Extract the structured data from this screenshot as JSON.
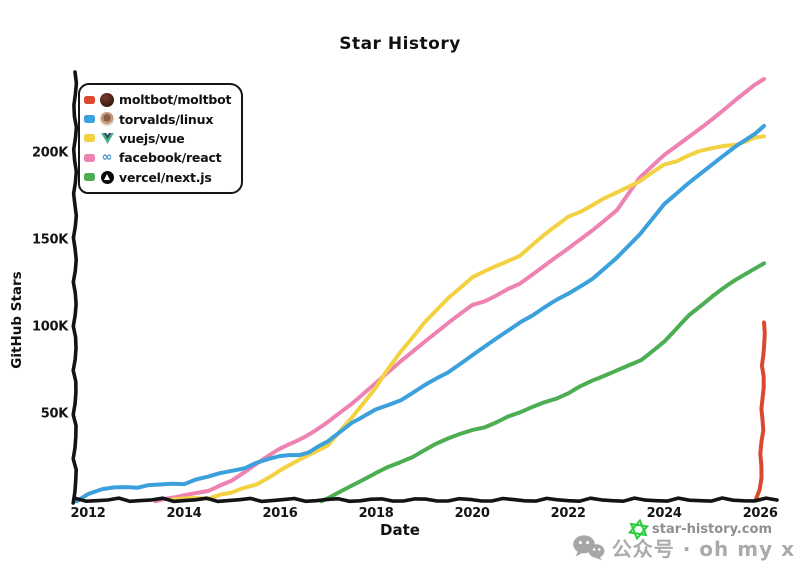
{
  "title": "Star History",
  "axes": {
    "x_label": "Date",
    "y_label": "GitHub Stars",
    "x_ticks": [
      "2012",
      "2014",
      "2016",
      "2018",
      "2020",
      "2022",
      "2024",
      "2026"
    ],
    "y_ticks": [
      "50K",
      "100K",
      "150K",
      "200K"
    ]
  },
  "chart_data": {
    "type": "line",
    "title": "Star History",
    "xlabel": "Date",
    "ylabel": "GitHub Stars",
    "x_unit": "year",
    "y_unit": "stars_in_thousands",
    "xlim": [
      2011.73,
      2026.35
    ],
    "ylim_k": [
      0,
      246
    ],
    "grid": false,
    "legend_position": "top-left",
    "series": [
      {
        "name": "moltbot/moltbot",
        "color": "#da492f",
        "points": [
          [
            2025.92,
            0
          ],
          [
            2026.0,
            6
          ],
          [
            2026.04,
            40
          ],
          [
            2026.08,
            102
          ]
        ]
      },
      {
        "name": "torvalds/linux",
        "color": "#3ba0dc",
        "points": [
          [
            2011.75,
            0
          ],
          [
            2012,
            4
          ],
          [
            2012.3,
            6
          ],
          [
            2012.8,
            7.5
          ],
          [
            2013.5,
            8.5
          ],
          [
            2014,
            10
          ],
          [
            2014.5,
            13
          ],
          [
            2015,
            17
          ],
          [
            2015.5,
            21
          ],
          [
            2016,
            25
          ],
          [
            2016.6,
            27.5
          ],
          [
            2017,
            33
          ],
          [
            2017.5,
            44
          ],
          [
            2018,
            52
          ],
          [
            2018.5,
            58
          ],
          [
            2019,
            65
          ],
          [
            2019.5,
            73
          ],
          [
            2020,
            83
          ],
          [
            2020.5,
            93
          ],
          [
            2021,
            103
          ],
          [
            2021.5,
            110
          ],
          [
            2022,
            118
          ],
          [
            2022.5,
            127
          ],
          [
            2023,
            139
          ],
          [
            2023.5,
            153
          ],
          [
            2024,
            170
          ],
          [
            2024.5,
            182
          ],
          [
            2025,
            193
          ],
          [
            2025.5,
            204
          ],
          [
            2026.08,
            215
          ]
        ]
      },
      {
        "name": "vuejs/vue",
        "color": "#f2d243",
        "points": [
          [
            2013.75,
            0
          ],
          [
            2014,
            0.5
          ],
          [
            2014.5,
            1.5
          ],
          [
            2015,
            4
          ],
          [
            2015.5,
            9
          ],
          [
            2016,
            18
          ],
          [
            2016.5,
            24
          ],
          [
            2017,
            31
          ],
          [
            2017.5,
            47
          ],
          [
            2018,
            64
          ],
          [
            2018.5,
            86
          ],
          [
            2019,
            103
          ],
          [
            2019.5,
            117
          ],
          [
            2020,
            129
          ],
          [
            2020.5,
            134
          ],
          [
            2021,
            140
          ],
          [
            2021.5,
            152
          ],
          [
            2022,
            163
          ],
          [
            2022.5,
            170
          ],
          [
            2023,
            176
          ],
          [
            2023.5,
            183
          ],
          [
            2024,
            193
          ],
          [
            2024.5,
            198
          ],
          [
            2025,
            202
          ],
          [
            2025.5,
            205
          ],
          [
            2026.08,
            209
          ]
        ]
      },
      {
        "name": "facebook/react",
        "color": "#ee82b2",
        "points": [
          [
            2013.4,
            0
          ],
          [
            2014,
            2
          ],
          [
            2014.5,
            6
          ],
          [
            2015,
            11
          ],
          [
            2015.5,
            20
          ],
          [
            2016,
            29
          ],
          [
            2016.5,
            37
          ],
          [
            2017,
            45
          ],
          [
            2017.5,
            55
          ],
          [
            2018,
            67
          ],
          [
            2018.5,
            79
          ],
          [
            2019,
            90
          ],
          [
            2019.5,
            101
          ],
          [
            2020,
            112
          ],
          [
            2020.5,
            118
          ],
          [
            2021,
            124
          ],
          [
            2021.5,
            134
          ],
          [
            2022,
            144
          ],
          [
            2022.5,
            155
          ],
          [
            2023,
            167
          ],
          [
            2023.5,
            185
          ],
          [
            2024,
            198
          ],
          [
            2024.5,
            209
          ],
          [
            2025,
            220
          ],
          [
            2025.5,
            231
          ],
          [
            2026.08,
            242
          ]
        ]
      },
      {
        "name": "vercel/next.js",
        "color": "#4cad52",
        "points": [
          [
            2016.85,
            0
          ],
          [
            2017,
            2
          ],
          [
            2017.5,
            8
          ],
          [
            2018,
            15
          ],
          [
            2018.5,
            22
          ],
          [
            2019,
            29
          ],
          [
            2019.5,
            35
          ],
          [
            2020,
            40
          ],
          [
            2020.5,
            45
          ],
          [
            2021,
            50
          ],
          [
            2021.5,
            56
          ],
          [
            2022,
            62
          ],
          [
            2022.5,
            68
          ],
          [
            2023,
            74
          ],
          [
            2023.5,
            81
          ],
          [
            2024,
            92
          ],
          [
            2024.5,
            107
          ],
          [
            2025,
            117
          ],
          [
            2025.5,
            126
          ],
          [
            2026.08,
            136
          ]
        ]
      }
    ]
  },
  "legend": {
    "items": [
      {
        "label": "moltbot/moltbot",
        "color": "#da492f",
        "icon": "moltbot-avatar"
      },
      {
        "label": "torvalds/linux",
        "color": "#3ba0dc",
        "icon": "torvalds-avatar"
      },
      {
        "label": "vuejs/vue",
        "color": "#f2d243",
        "icon": "vue-logo"
      },
      {
        "label": "facebook/react",
        "color": "#ee82b2",
        "icon": "react-logo"
      },
      {
        "label": "vercel/next.js",
        "color": "#4cad52",
        "icon": "vercel-logo"
      }
    ]
  },
  "watermark": {
    "site": "star-history.com",
    "wechat_text": "公众号 · oh my x",
    "star_color": "#2bcc3e",
    "site_text_color": "#8f8f8f",
    "wechat_text_color": "#ababab"
  }
}
